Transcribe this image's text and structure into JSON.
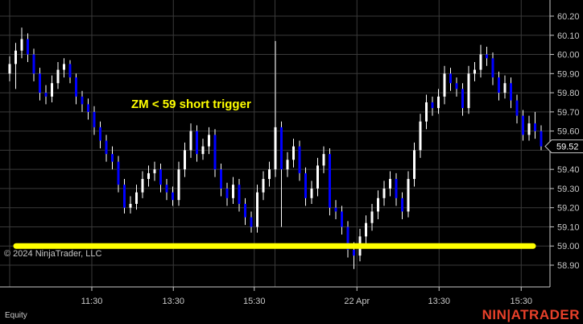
{
  "chart_data": {
    "type": "candlestick",
    "title": "",
    "instrument": "Equity",
    "ylim": [
      58.8,
      60.25
    ],
    "y_ticks": [
      60.2,
      60.1,
      60.0,
      59.9,
      59.8,
      59.7,
      59.6,
      59.4,
      59.3,
      59.2,
      59.1,
      59.0,
      58.9
    ],
    "x_ticks": [
      {
        "label": "11:30",
        "bar": 13.6
      },
      {
        "label": "13:30",
        "bar": 27.1
      },
      {
        "label": "15:30",
        "bar": 40.5
      },
      {
        "label": "22 Apr",
        "bar": 57.5
      },
      {
        "label": "13:30",
        "bar": 71.1
      },
      {
        "label": "15:30",
        "bar": 84.7
      }
    ],
    "extra_grid_bar": 44,
    "grid": true,
    "last_price": "59.52",
    "colors": {
      "up": "#ffffff",
      "down": "#0000ff",
      "grid": "#3a3a3a",
      "annotation": "#ffff00",
      "price_tag_bg": "#000000",
      "logo": "#e8402a"
    },
    "horizontal_line": {
      "price": 59.0,
      "color": "#ffff00"
    },
    "annotation": "ZM < 59 short trigger",
    "ohlc": [
      [
        59.9,
        59.99,
        59.86,
        59.95
      ],
      [
        59.95,
        60.06,
        59.82,
        60.02
      ],
      [
        60.02,
        60.14,
        59.98,
        60.08
      ],
      [
        60.08,
        60.11,
        59.96,
        60.0
      ],
      [
        60.0,
        60.03,
        59.86,
        59.9
      ],
      [
        59.9,
        59.93,
        59.76,
        59.8
      ],
      [
        59.8,
        59.84,
        59.74,
        59.78
      ],
      [
        59.78,
        59.89,
        59.75,
        59.85
      ],
      [
        59.85,
        59.96,
        59.82,
        59.92
      ],
      [
        59.92,
        59.98,
        59.88,
        59.95
      ],
      [
        59.95,
        59.97,
        59.85,
        59.88
      ],
      [
        59.88,
        59.9,
        59.74,
        59.78
      ],
      [
        59.78,
        59.81,
        59.7,
        59.74
      ],
      [
        59.74,
        59.77,
        59.66,
        59.7
      ],
      [
        59.7,
        59.73,
        59.58,
        59.62
      ],
      [
        59.62,
        59.65,
        59.51,
        59.55
      ],
      [
        59.55,
        59.58,
        59.44,
        59.48
      ],
      [
        59.48,
        59.52,
        59.4,
        59.44
      ],
      [
        59.44,
        59.47,
        59.28,
        59.32
      ],
      [
        59.32,
        59.35,
        59.17,
        59.2
      ],
      [
        59.2,
        59.26,
        59.17,
        59.22
      ],
      [
        59.22,
        59.32,
        59.19,
        59.28
      ],
      [
        59.28,
        59.39,
        59.25,
        59.35
      ],
      [
        59.35,
        59.42,
        59.31,
        59.38
      ],
      [
        59.38,
        59.44,
        59.34,
        59.4
      ],
      [
        59.4,
        59.43,
        59.28,
        59.32
      ],
      [
        59.32,
        59.35,
        59.24,
        59.28
      ],
      [
        59.28,
        59.31,
        59.21,
        59.24
      ],
      [
        59.24,
        59.44,
        59.21,
        59.4
      ],
      [
        59.4,
        59.54,
        59.36,
        59.5
      ],
      [
        59.5,
        59.64,
        59.46,
        59.6
      ],
      [
        59.6,
        59.63,
        59.44,
        59.48
      ],
      [
        59.48,
        59.56,
        59.45,
        59.52
      ],
      [
        59.52,
        59.62,
        59.48,
        59.58
      ],
      [
        59.58,
        59.61,
        59.36,
        59.4
      ],
      [
        59.4,
        59.43,
        59.26,
        59.3
      ],
      [
        59.3,
        59.33,
        59.21,
        59.25
      ],
      [
        59.25,
        59.36,
        59.22,
        59.32
      ],
      [
        59.32,
        59.35,
        59.18,
        59.22
      ],
      [
        59.22,
        59.25,
        59.11,
        59.15
      ],
      [
        59.15,
        59.18,
        59.07,
        59.1
      ],
      [
        59.1,
        59.32,
        59.07,
        59.28
      ],
      [
        59.28,
        59.39,
        59.24,
        59.35
      ],
      [
        59.35,
        59.44,
        59.31,
        59.4
      ],
      [
        59.4,
        60.07,
        59.36,
        59.62
      ],
      [
        59.62,
        59.65,
        59.1,
        59.4
      ],
      [
        59.4,
        59.49,
        59.36,
        59.45
      ],
      [
        59.45,
        59.56,
        59.41,
        59.52
      ],
      [
        59.52,
        59.55,
        59.34,
        59.38
      ],
      [
        59.38,
        59.41,
        59.21,
        59.25
      ],
      [
        59.25,
        59.34,
        59.22,
        59.3
      ],
      [
        59.3,
        59.46,
        59.26,
        59.42
      ],
      [
        59.42,
        59.52,
        59.38,
        59.48
      ],
      [
        59.48,
        59.51,
        59.16,
        59.2
      ],
      [
        59.2,
        59.24,
        59.14,
        59.18
      ],
      [
        59.18,
        59.21,
        59.06,
        59.1
      ],
      [
        59.1,
        59.13,
        58.94,
        58.98
      ],
      [
        58.98,
        59.02,
        58.88,
        58.95
      ],
      [
        58.95,
        59.09,
        58.92,
        59.05
      ],
      [
        59.05,
        59.16,
        59.01,
        59.12
      ],
      [
        59.12,
        59.22,
        59.08,
        59.18
      ],
      [
        59.18,
        59.29,
        59.14,
        59.25
      ],
      [
        59.25,
        59.34,
        59.21,
        59.3
      ],
      [
        59.3,
        59.39,
        59.26,
        59.35
      ],
      [
        59.35,
        59.38,
        59.21,
        59.25
      ],
      [
        59.25,
        59.28,
        59.14,
        59.18
      ],
      [
        59.18,
        59.39,
        59.15,
        59.35
      ],
      [
        59.35,
        59.54,
        59.31,
        59.5
      ],
      [
        59.5,
        59.69,
        59.46,
        59.65
      ],
      [
        59.65,
        59.79,
        59.61,
        59.75
      ],
      [
        59.75,
        59.78,
        59.68,
        59.72
      ],
      [
        59.72,
        59.82,
        59.69,
        59.78
      ],
      [
        59.78,
        59.94,
        59.74,
        59.9
      ],
      [
        59.9,
        59.93,
        59.81,
        59.85
      ],
      [
        59.85,
        59.88,
        59.78,
        59.82
      ],
      [
        59.82,
        59.85,
        59.68,
        59.72
      ],
      [
        59.72,
        59.94,
        59.69,
        59.9
      ],
      [
        59.9,
        59.96,
        59.86,
        59.92
      ],
      [
        59.92,
        60.05,
        59.88,
        60.0
      ],
      [
        60.0,
        60.04,
        59.94,
        59.98
      ],
      [
        59.98,
        60.01,
        59.84,
        59.88
      ],
      [
        59.88,
        59.91,
        59.76,
        59.8
      ],
      [
        59.8,
        59.89,
        59.77,
        59.85
      ],
      [
        59.85,
        59.88,
        59.72,
        59.76
      ],
      [
        59.76,
        59.79,
        59.64,
        59.68
      ],
      [
        59.68,
        59.71,
        59.55,
        59.58
      ],
      [
        59.58,
        59.68,
        59.55,
        59.64
      ],
      [
        59.64,
        59.7,
        59.56,
        59.6
      ],
      [
        59.6,
        59.63,
        59.5,
        59.52
      ]
    ]
  },
  "footer": {
    "copyright": "© 2024 NinjaTrader, LLC",
    "instrument_label": "Equity",
    "logo": "NINJATRADER"
  }
}
